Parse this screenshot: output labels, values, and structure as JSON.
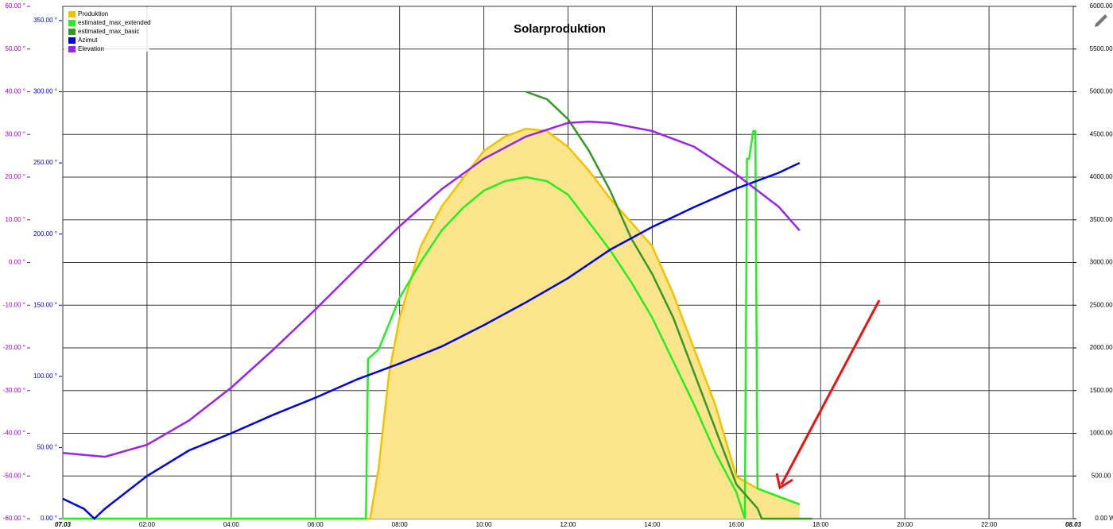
{
  "chart_data": {
    "type": "line",
    "title": "Solarproduktion",
    "xlim": [
      0,
      24
    ],
    "xticks": [
      {
        "value": 0,
        "label": "07.03"
      },
      {
        "value": 2,
        "label": "02:00"
      },
      {
        "value": 4,
        "label": "04:00"
      },
      {
        "value": 6,
        "label": "06:00"
      },
      {
        "value": 8,
        "label": "08:00"
      },
      {
        "value": 10,
        "label": "10:00"
      },
      {
        "value": 12,
        "label": "12:00"
      },
      {
        "value": 14,
        "label": "14:00"
      },
      {
        "value": 16,
        "label": "16:00"
      },
      {
        "value": 18,
        "label": "18:00"
      },
      {
        "value": 20,
        "label": "20:00"
      },
      {
        "value": 22,
        "label": "22:00"
      },
      {
        "value": 24,
        "label": "08.03"
      }
    ],
    "ylim": [
      -60,
      60
    ],
    "yticks": [
      {
        "value": -60,
        "label": "-60.00 °"
      },
      {
        "value": -50,
        "label": "-50.00 °"
      },
      {
        "value": -40,
        "label": "-40.00 °"
      },
      {
        "value": -30,
        "label": "-30.00 °"
      },
      {
        "value": -20,
        "label": "-20.00 °"
      },
      {
        "value": -10,
        "label": "-10.00 °"
      },
      {
        "value": 0,
        "label": "0.00 °"
      },
      {
        "value": 10,
        "label": "10.00 °"
      },
      {
        "value": 20,
        "label": "20.00 °"
      },
      {
        "value": 30,
        "label": "30.00 °"
      },
      {
        "value": 40,
        "label": "40.00 °"
      },
      {
        "value": 50,
        "label": "50.00 °"
      },
      {
        "value": 60,
        "label": "60.00 °"
      }
    ],
    "ytick_color": "#9900cc",
    "y3lim": [
      0,
      360
    ],
    "y3ticks": [
      {
        "value": 0,
        "label": "0.00 °"
      },
      {
        "value": 50,
        "label": "50.00 °"
      },
      {
        "value": 100,
        "label": "100.00 °"
      },
      {
        "value": 150,
        "label": "150.00 °"
      },
      {
        "value": 200,
        "label": "200.00 °"
      },
      {
        "value": 250,
        "label": "250.00 °"
      },
      {
        "value": 300,
        "label": "300.00 °"
      },
      {
        "value": 350,
        "label": "350.00 °"
      }
    ],
    "y3tick_color": "#0000cc",
    "y2lim": [
      0,
      6000
    ],
    "y2ticks": [
      {
        "value": 0,
        "label": "0.00 W"
      },
      {
        "value": 500,
        "label": "500.00 W"
      },
      {
        "value": 1000,
        "label": "1000.00 W"
      },
      {
        "value": 1500,
        "label": "1500.00 W"
      },
      {
        "value": 2000,
        "label": "2000.00 W"
      },
      {
        "value": 2500,
        "label": "2500.00 W"
      },
      {
        "value": 3000,
        "label": "3000.00 W"
      },
      {
        "value": 3500,
        "label": "3500.00 W"
      },
      {
        "value": 4000,
        "label": "4000.00 W"
      },
      {
        "value": 4500,
        "label": "4500.00 W"
      },
      {
        "value": 5000,
        "label": "5000.00 W"
      },
      {
        "value": 5500,
        "label": "5500.00 W"
      },
      {
        "value": 6000,
        "label": "6000.00 W"
      }
    ],
    "grid": true,
    "legend": "top-left",
    "series": [
      {
        "name": "Produktion",
        "color": "#f2c200",
        "fill_color": "#fae48c",
        "axis": "y2",
        "x": [
          0,
          7.3,
          7.5,
          7.75,
          8,
          8.5,
          9,
          9.5,
          10,
          10.5,
          11,
          11.5,
          12,
          12.5,
          13,
          13.5,
          14,
          14.5,
          15,
          15.5,
          16,
          16.5,
          17,
          17.5
        ],
        "values": [
          0,
          0,
          586,
          1702,
          2353,
          3190,
          3656,
          3981,
          4307,
          4474,
          4567,
          4540,
          4353,
          4074,
          3749,
          3470,
          3190,
          2632,
          1981,
          1330,
          493,
          353,
          260,
          167
        ]
      },
      {
        "name": "estimated_max_extended",
        "color": "#22ee22",
        "axis": "y2",
        "x": [
          0,
          7.2,
          7.25,
          7.5,
          8,
          8.5,
          9,
          9.5,
          10,
          10.5,
          11,
          11.5,
          12,
          12.5,
          13,
          13.5,
          14,
          14.5,
          15,
          15.5,
          16,
          16.2,
          16.25,
          16.3,
          16.4,
          16.45,
          16.5,
          17,
          17.5
        ],
        "values": [
          0,
          0,
          1870,
          1981,
          2586,
          3005,
          3377,
          3637,
          3842,
          3953,
          4000,
          3953,
          3795,
          3470,
          3144,
          2772,
          2353,
          1842,
          1330,
          772,
          307,
          0,
          4214,
          4214,
          4540,
          4540,
          353,
          260,
          167
        ]
      },
      {
        "name": "estimated_max_basic",
        "color": "#339922",
        "axis": "y2",
        "x": [
          11,
          11.5,
          12,
          12.5,
          13,
          13.5,
          14,
          14.5,
          15,
          15.5,
          16,
          16.5,
          16.6,
          17.8
        ],
        "values": [
          5000,
          4912,
          4679,
          4307,
          3842,
          3284,
          2865,
          2353,
          1702,
          1051,
          400,
          121,
          0,
          0
        ]
      },
      {
        "name": "Azimut",
        "color": "#0000dd",
        "axis": "y3",
        "x": [
          0,
          0.5,
          0.75,
          1,
          2,
          3,
          4,
          5,
          6,
          7,
          8,
          9,
          10,
          11,
          12,
          13,
          14,
          15,
          16,
          17,
          17.5
        ],
        "values": [
          14,
          7,
          0,
          7,
          30,
          48,
          60,
          73,
          85,
          98,
          109,
          121,
          136,
          152,
          169,
          189,
          205,
          219,
          232,
          243,
          250
        ]
      },
      {
        "name": "Elevation",
        "color": "#9922ee",
        "x": [
          0,
          1,
          2,
          3,
          4,
          5,
          6,
          7,
          8,
          9,
          10,
          11,
          12,
          12.5,
          13,
          14,
          15,
          16,
          17,
          17.5
        ],
        "values": [
          -44.6,
          -45.5,
          -42.7,
          -37,
          -29.3,
          -20.4,
          -11,
          -1.2,
          8.5,
          17.2,
          24.3,
          29.5,
          32.7,
          33,
          32.7,
          30.8,
          27.1,
          20.6,
          13.1,
          7.5
        ]
      }
    ]
  }
}
